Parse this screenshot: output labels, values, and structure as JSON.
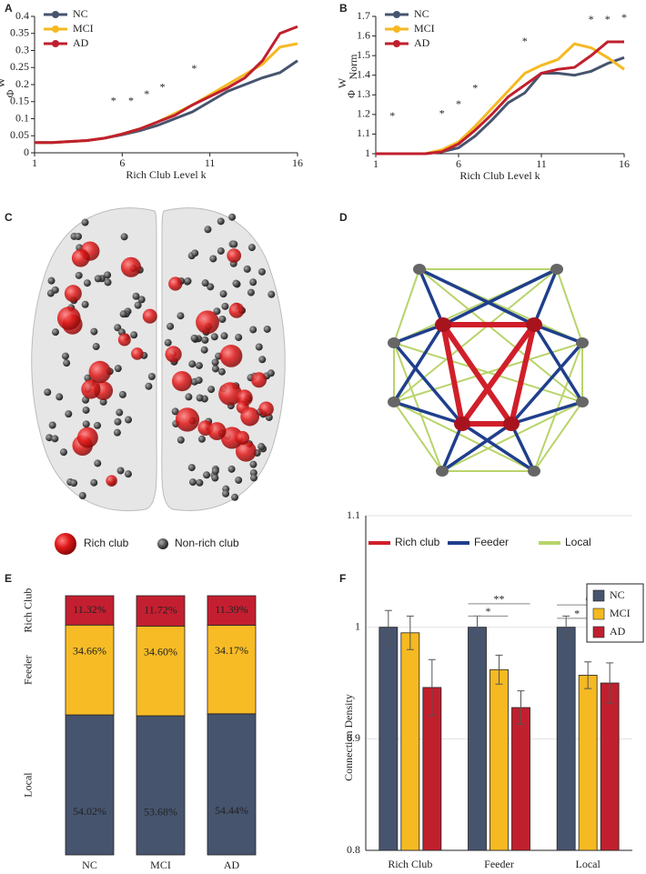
{
  "panel_labels": [
    "A",
    "B",
    "C",
    "D",
    "E",
    "F"
  ],
  "brain_legend": [
    "Rich club",
    "Non-rich club"
  ],
  "network_legend": [
    "Rich club",
    "Feeder",
    "Local"
  ],
  "chart_data": [
    {
      "type": "line",
      "xlabel": "Rich Club Level k",
      "ylabel": "Φ",
      "ylabel_sup": "W",
      "x": [
        1,
        2,
        3,
        4,
        5,
        6,
        7,
        8,
        9,
        10,
        11,
        12,
        13,
        14,
        15,
        16
      ],
      "xlim": [
        1,
        16
      ],
      "xticks": [
        1,
        6,
        11,
        16
      ],
      "ylim": [
        0,
        0.4
      ],
      "yticks": [
        0,
        0.05,
        0.1,
        0.15,
        0.2,
        0.25,
        0.3,
        0.35,
        0.4
      ],
      "legend": "upper left",
      "series": [
        {
          "name": "NC",
          "color": "#46546e",
          "values": [
            0.03,
            0.03,
            0.033,
            0.036,
            0.043,
            0.053,
            0.065,
            0.08,
            0.1,
            0.12,
            0.15,
            0.18,
            0.2,
            0.22,
            0.235,
            0.27
          ]
        },
        {
          "name": "MCI",
          "color": "#f5b922",
          "values": [
            0.03,
            0.03,
            0.033,
            0.036,
            0.043,
            0.055,
            0.07,
            0.09,
            0.115,
            0.14,
            0.17,
            0.2,
            0.23,
            0.26,
            0.31,
            0.32
          ]
        },
        {
          "name": "AD",
          "color": "#c0202e",
          "values": [
            0.03,
            0.03,
            0.033,
            0.036,
            0.043,
            0.055,
            0.07,
            0.09,
            0.11,
            0.14,
            0.165,
            0.19,
            0.22,
            0.27,
            0.35,
            0.37
          ]
        }
      ],
      "annotations": [
        {
          "text": "*",
          "x": 5.5,
          "y": 0.15
        },
        {
          "text": "*",
          "x": 6.5,
          "y": 0.15
        },
        {
          "text": "*",
          "x": 7.4,
          "y": 0.17
        },
        {
          "text": "*",
          "x": 8.3,
          "y": 0.19
        },
        {
          "text": "*",
          "x": 10.1,
          "y": 0.245
        }
      ]
    },
    {
      "type": "line",
      "xlabel": "Rich Club Level k",
      "ylabel": "Φ",
      "ylabel_sup": "W",
      "ylabel_sub": "Norm",
      "x": [
        1,
        2,
        3,
        4,
        5,
        6,
        7,
        8,
        9,
        10,
        11,
        12,
        13,
        14,
        15,
        16
      ],
      "xlim": [
        1,
        16
      ],
      "xticks": [
        1,
        6,
        11,
        16
      ],
      "ylim": [
        1,
        1.7
      ],
      "yticks": [
        1,
        1.1,
        1.2,
        1.3,
        1.4,
        1.5,
        1.6,
        1.7
      ],
      "legend": "upper left",
      "series": [
        {
          "name": "NC",
          "color": "#46546e",
          "values": [
            1,
            1,
            1,
            1,
            1.01,
            1.03,
            1.09,
            1.17,
            1.26,
            1.31,
            1.41,
            1.41,
            1.4,
            1.42,
            1.46,
            1.49
          ]
        },
        {
          "name": "MCI",
          "color": "#f5b922",
          "values": [
            1,
            1,
            1,
            1,
            1.02,
            1.06,
            1.14,
            1.23,
            1.32,
            1.41,
            1.45,
            1.48,
            1.56,
            1.54,
            1.49,
            1.43
          ]
        },
        {
          "name": "AD",
          "color": "#c0202e",
          "values": [
            1,
            1,
            1,
            1,
            1.01,
            1.05,
            1.12,
            1.2,
            1.29,
            1.35,
            1.41,
            1.43,
            1.44,
            1.5,
            1.57,
            1.57
          ]
        }
      ],
      "annotations": [
        {
          "text": "*",
          "x": 2,
          "y": 1.19
        },
        {
          "text": "*",
          "x": 5,
          "y": 1.2
        },
        {
          "text": "*",
          "x": 6,
          "y": 1.25
        },
        {
          "text": "*",
          "x": 7,
          "y": 1.33
        },
        {
          "text": "*",
          "x": 10,
          "y": 1.57
        },
        {
          "text": "*",
          "x": 14,
          "y": 1.68
        },
        {
          "text": "*",
          "x": 15,
          "y": 1.68
        },
        {
          "text": "*",
          "x": 16,
          "y": 1.69
        }
      ]
    },
    {
      "type": "stacked_bar",
      "categories": [
        "NC",
        "MCI",
        "AD"
      ],
      "ylim": [
        0,
        100
      ],
      "series": [
        {
          "name": "Local",
          "color": "#46546e",
          "values": [
            54.02,
            53.68,
            54.44
          ],
          "value_labels": [
            "54.02%",
            "53.68%",
            "54.44%"
          ]
        },
        {
          "name": "Feeder",
          "color": "#f7bb26",
          "values": [
            34.66,
            34.6,
            34.17
          ],
          "value_labels": [
            "34.66%",
            "34.60%",
            "34.17%"
          ]
        },
        {
          "name": "Rich Club",
          "color": "#c41f30",
          "values": [
            11.32,
            11.72,
            11.39
          ],
          "value_labels": [
            "11.32%",
            "11.72%",
            "11.39%"
          ]
        }
      ]
    },
    {
      "type": "grouped_bar",
      "ylabel": "Connection Density",
      "categories": [
        "Rich Club",
        "Feeder",
        "Local"
      ],
      "ylim": [
        0.8,
        1.1
      ],
      "yticks": [
        0.8,
        0.9,
        1,
        1.1
      ],
      "grid": true,
      "legend": "upper right",
      "series": [
        {
          "name": "NC",
          "color": "#46546e",
          "values": [
            1,
            1,
            1
          ],
          "errors": [
            0.015,
            0.01,
            0.01
          ]
        },
        {
          "name": "MCI",
          "color": "#f5b922",
          "values": [
            0.995,
            0.962,
            0.957
          ],
          "errors": [
            0.015,
            0.013,
            0.012
          ]
        },
        {
          "name": "AD",
          "color": "#c0202e",
          "values": [
            0.946,
            0.928,
            0.95
          ],
          "errors": [
            0.025,
            0.015,
            0.018
          ]
        }
      ],
      "annotations": [
        {
          "text": "**",
          "category": 1,
          "from": 0,
          "to": 2,
          "y": 1.021
        },
        {
          "text": "*",
          "category": 1,
          "from": 0,
          "to": 1,
          "y": 1.01
        },
        {
          "text": "*",
          "category": 2,
          "from": 0,
          "to": 2,
          "y": 1.02
        },
        {
          "text": "*",
          "category": 2,
          "from": 0,
          "to": 1,
          "y": 1.008
        }
      ]
    }
  ]
}
